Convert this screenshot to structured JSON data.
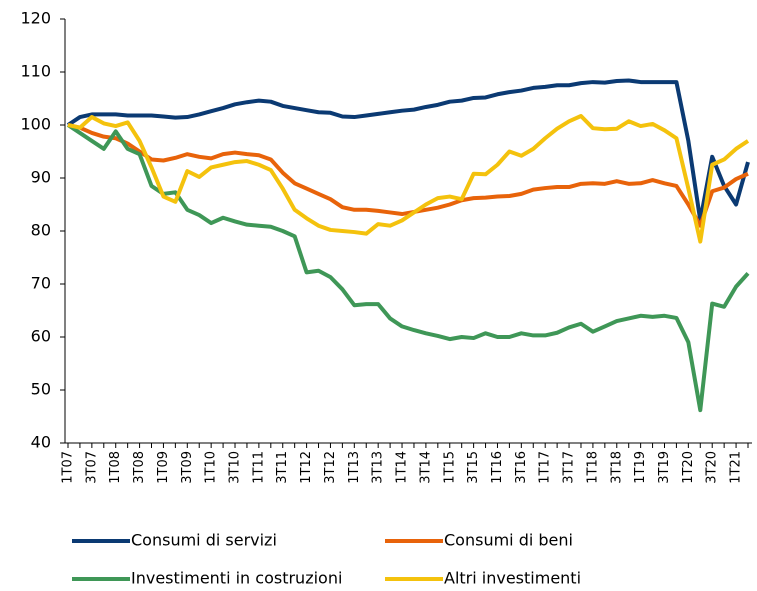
{
  "chart_data": {
    "type": "line",
    "categories": [
      "1T07",
      null,
      "3T07",
      null,
      "1T08",
      null,
      "3T08",
      null,
      "1T09",
      null,
      "3T09",
      null,
      "1T10",
      null,
      "3T10",
      null,
      "1T11",
      null,
      "3T11",
      null,
      "1T12",
      null,
      "3T12",
      null,
      "1T13",
      null,
      "3T13",
      null,
      "1T14",
      null,
      "3T14",
      null,
      "1T15",
      null,
      "3T15",
      null,
      "1T16",
      null,
      "3T16",
      null,
      "1T17",
      null,
      "3T17",
      null,
      "1T18",
      null,
      "3T18",
      null,
      "1T19",
      null,
      "3T19",
      null,
      "1T20",
      null,
      "3T20",
      null,
      "1T21",
      null
    ],
    "series": [
      {
        "name": "Consumi di servizi",
        "color": "#0b3a73",
        "values": [
          100,
          101.5,
          102,
          102,
          102,
          101.8,
          101.8,
          101.8,
          101.6,
          101.4,
          101.5,
          102,
          102.6,
          103.2,
          103.9,
          104.3,
          104.6,
          104.4,
          103.6,
          103.2,
          102.8,
          102.4,
          102.3,
          101.6,
          101.5,
          101.8,
          102.1,
          102.4,
          102.7,
          102.9,
          103.4,
          103.8,
          104.4,
          104.6,
          105.1,
          105.2,
          105.8,
          106.2,
          106.5,
          107,
          107.2,
          107.5,
          107.5,
          107.9,
          108.1,
          108,
          108.3,
          108.4,
          108.1,
          108.1,
          108.1,
          108.1,
          97,
          82,
          94,
          88.5,
          85,
          93
        ]
      },
      {
        "name": "Consumi di beni",
        "color": "#e8630a",
        "values": [
          100,
          99.5,
          98.5,
          97.8,
          97.5,
          96.5,
          95,
          93.5,
          93.3,
          93.8,
          94.5,
          94,
          93.7,
          94.5,
          94.8,
          94.5,
          94.3,
          93.5,
          91,
          89,
          88,
          87,
          86,
          84.5,
          84,
          84,
          83.8,
          83.5,
          83.2,
          83.6,
          84,
          84.4,
          85,
          85.8,
          86.2,
          86.3,
          86.5,
          86.6,
          87,
          87.8,
          88.1,
          88.3,
          88.3,
          88.9,
          89,
          88.9,
          89.4,
          88.9,
          89,
          89.6,
          89,
          88.5,
          85,
          81,
          87.5,
          88.2,
          89.8,
          90.8
        ]
      },
      {
        "name": "Investimenti in costruzioni",
        "color": "#3f9757",
        "values": [
          100,
          98.5,
          97,
          95.5,
          98.8,
          95.5,
          94.5,
          88.5,
          87,
          87.3,
          84,
          83,
          81.5,
          82.5,
          81.8,
          81.2,
          81,
          80.8,
          80,
          79,
          72.2,
          72.5,
          71.3,
          69,
          66,
          66.2,
          66.2,
          63.5,
          62,
          61.3,
          60.7,
          60.2,
          59.6,
          60,
          59.8,
          60.7,
          60,
          60,
          60.7,
          60.3,
          60.3,
          60.8,
          61.8,
          62.5,
          61,
          62,
          63,
          63.5,
          64,
          63.8,
          64,
          63.6,
          59,
          46.2,
          66.3,
          65.7,
          69.5,
          72
        ]
      },
      {
        "name": "Altri investimenti",
        "color": "#f4c20d",
        "values": [
          100,
          99.5,
          101.5,
          100.3,
          99.8,
          100.5,
          97,
          92,
          86.5,
          85.5,
          91.3,
          90.2,
          92,
          92.5,
          93,
          93.2,
          92.5,
          91.5,
          88,
          84,
          82.4,
          81,
          80.2,
          80,
          79.8,
          79.5,
          81.3,
          81,
          82,
          83.5,
          85,
          86.2,
          86.5,
          86,
          90.8,
          90.7,
          92.5,
          95,
          94.2,
          95.5,
          97.5,
          99.3,
          100.7,
          101.7,
          99.4,
          99.2,
          99.3,
          100.7,
          99.8,
          100.2,
          99,
          97.5,
          88,
          78,
          92.5,
          93.5,
          95.5,
          97
        ]
      }
    ],
    "ylim": [
      40,
      120
    ],
    "yticks": [
      40,
      50,
      60,
      70,
      80,
      90,
      100,
      110,
      120
    ],
    "grid": false
  }
}
